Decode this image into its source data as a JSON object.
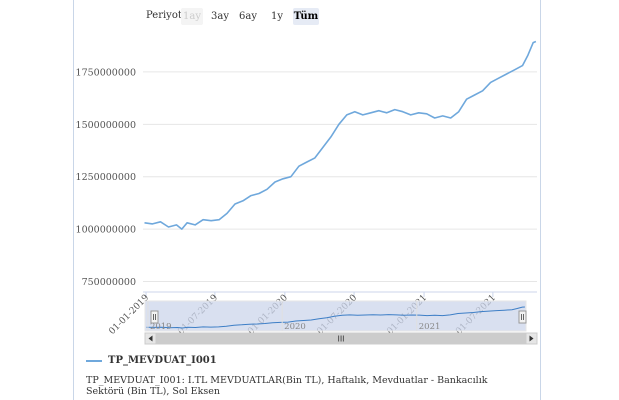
{
  "range_selector": {
    "label": "Periyot",
    "buttons": [
      {
        "label": "1ay",
        "state": "disabled"
      },
      {
        "label": "3ay",
        "state": "normal"
      },
      {
        "label": "6ay",
        "state": "normal"
      },
      {
        "label": "1y",
        "state": "normal"
      },
      {
        "label": "Tüm",
        "state": "active"
      }
    ]
  },
  "legend": {
    "series_name": "TP_MEVDUAT_I001"
  },
  "caption": "TP_MEVDUAT_I001: I.TL MEVDUATLAR(Bin TL), Haftalık, Mevduatlar - Bankacılık Sektörü (Bin TL), Sol Eksen",
  "navigator": {
    "year_labels": [
      "2019",
      "2020",
      "2021"
    ],
    "scrollbar_grip": "III"
  },
  "colors": {
    "series": "#6fa8dc",
    "navigator_fill": "#ccd6eb",
    "grid": "#e6e6e6"
  },
  "chart_data": {
    "type": "line",
    "title": "",
    "xlabel": "",
    "ylabel": "",
    "ylim": [
      700000000,
      1950000000
    ],
    "xlim": [
      "2018-12-24",
      "2021-10-25"
    ],
    "yticks": [
      750000000,
      1000000000,
      1250000000,
      1500000000,
      1750000000
    ],
    "ytick_labels": [
      "750000000",
      "1000000000",
      "1250000000",
      "1500000000",
      "1750000000"
    ],
    "xticks": [
      "2019-01-01",
      "2019-07-01",
      "2020-01-01",
      "2020-07-01",
      "2021-01-01",
      "2021-07-01"
    ],
    "xtick_labels": [
      "01-01-2019",
      "01-07-2019",
      "01-01-2020",
      "01-07-2020",
      "01-01-2021",
      "01-07-2021"
    ],
    "grid": true,
    "legend_position": "bottom-left",
    "series": [
      {
        "name": "TP_MEVDUAT_I001",
        "x": [
          "2018-12-28",
          "2019-01-18",
          "2019-02-08",
          "2019-03-01",
          "2019-03-22",
          "2019-04-05",
          "2019-04-19",
          "2019-05-10",
          "2019-05-31",
          "2019-06-21",
          "2019-07-12",
          "2019-08-02",
          "2019-08-23",
          "2019-09-13",
          "2019-10-04",
          "2019-10-25",
          "2019-11-15",
          "2019-12-06",
          "2019-12-27",
          "2020-01-17",
          "2020-02-07",
          "2020-02-28",
          "2020-03-20",
          "2020-04-10",
          "2020-05-01",
          "2020-05-22",
          "2020-06-12",
          "2020-07-03",
          "2020-07-24",
          "2020-08-14",
          "2020-09-04",
          "2020-09-25",
          "2020-10-16",
          "2020-11-06",
          "2020-11-27",
          "2020-12-18",
          "2021-01-08",
          "2021-01-29",
          "2021-02-19",
          "2021-03-12",
          "2021-04-02",
          "2021-04-23",
          "2021-05-14",
          "2021-06-04",
          "2021-06-25",
          "2021-07-16",
          "2021-08-06",
          "2021-08-27",
          "2021-09-17",
          "2021-10-01",
          "2021-10-15",
          "2021-10-22"
        ],
        "values": [
          1030000000,
          1025000000,
          1035000000,
          1010000000,
          1020000000,
          1000000000,
          1030000000,
          1020000000,
          1045000000,
          1040000000,
          1045000000,
          1075000000,
          1120000000,
          1135000000,
          1160000000,
          1170000000,
          1190000000,
          1225000000,
          1240000000,
          1250000000,
          1300000000,
          1320000000,
          1340000000,
          1390000000,
          1440000000,
          1500000000,
          1545000000,
          1560000000,
          1545000000,
          1555000000,
          1565000000,
          1555000000,
          1570000000,
          1560000000,
          1545000000,
          1555000000,
          1550000000,
          1530000000,
          1540000000,
          1530000000,
          1560000000,
          1620000000,
          1640000000,
          1660000000,
          1700000000,
          1720000000,
          1740000000,
          1760000000,
          1780000000,
          1830000000,
          1890000000,
          1895000000
        ]
      }
    ]
  }
}
